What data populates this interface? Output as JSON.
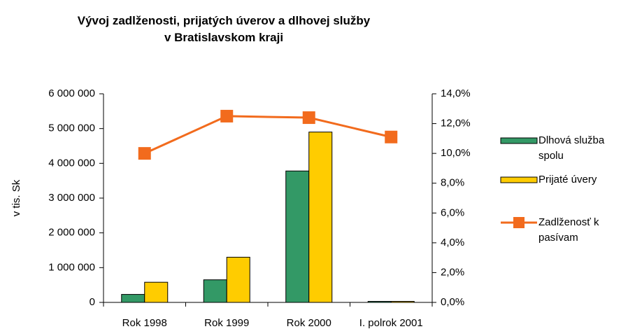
{
  "chart_data": {
    "type": "bar_line",
    "title": "Vývoj zadlženosti, prijatých úverov a dlhovej služby\nv Bratislavskom kraji",
    "ylabel": "v tis. Sk",
    "categories": [
      "Rok 1998",
      "Rok 1999",
      "Rok 2000",
      "I. polrok 2001"
    ],
    "series": [
      {
        "name": "Dlhová služba spolu",
        "type": "bar",
        "color": "#339966",
        "values": [
          230000,
          650000,
          3780000,
          30000
        ]
      },
      {
        "name": "Prijaté úvery",
        "type": "bar",
        "color": "#ffcc00",
        "values": [
          580000,
          1300000,
          4900000,
          30000
        ]
      },
      {
        "name": "Zadlženosť k pasívam",
        "type": "line",
        "axis": "y2",
        "color": "#f26b1d",
        "values": [
          10.0,
          12.5,
          12.4,
          11.1
        ]
      }
    ],
    "ylim": [
      0,
      6000000
    ],
    "yticks": [
      0,
      {
        "value": 1000000,
        "label": "1 000 000"
      },
      {
        "value": 2000000,
        "label": "2 000 000"
      },
      {
        "value": 3000000,
        "label": "3 000 000"
      },
      {
        "value": 4000000,
        "label": "4 000 000"
      },
      {
        "value": 5000000,
        "label": "5 000 000"
      },
      {
        "value": 6000000,
        "label": "6 000 000"
      }
    ],
    "y2lim": [
      0,
      14
    ],
    "y2ticks": [
      {
        "value": 0,
        "label": "0,0%"
      },
      {
        "value": 2,
        "label": "2,0%"
      },
      {
        "value": 4,
        "label": "4,0%"
      },
      {
        "value": 6,
        "label": "6,0%"
      },
      {
        "value": 8,
        "label": "8,0%"
      },
      {
        "value": 10,
        "label": "10,0%"
      },
      {
        "value": 12,
        "label": "12,0%"
      },
      {
        "value": 14,
        "label": "14,0%"
      }
    ],
    "grid": false
  }
}
